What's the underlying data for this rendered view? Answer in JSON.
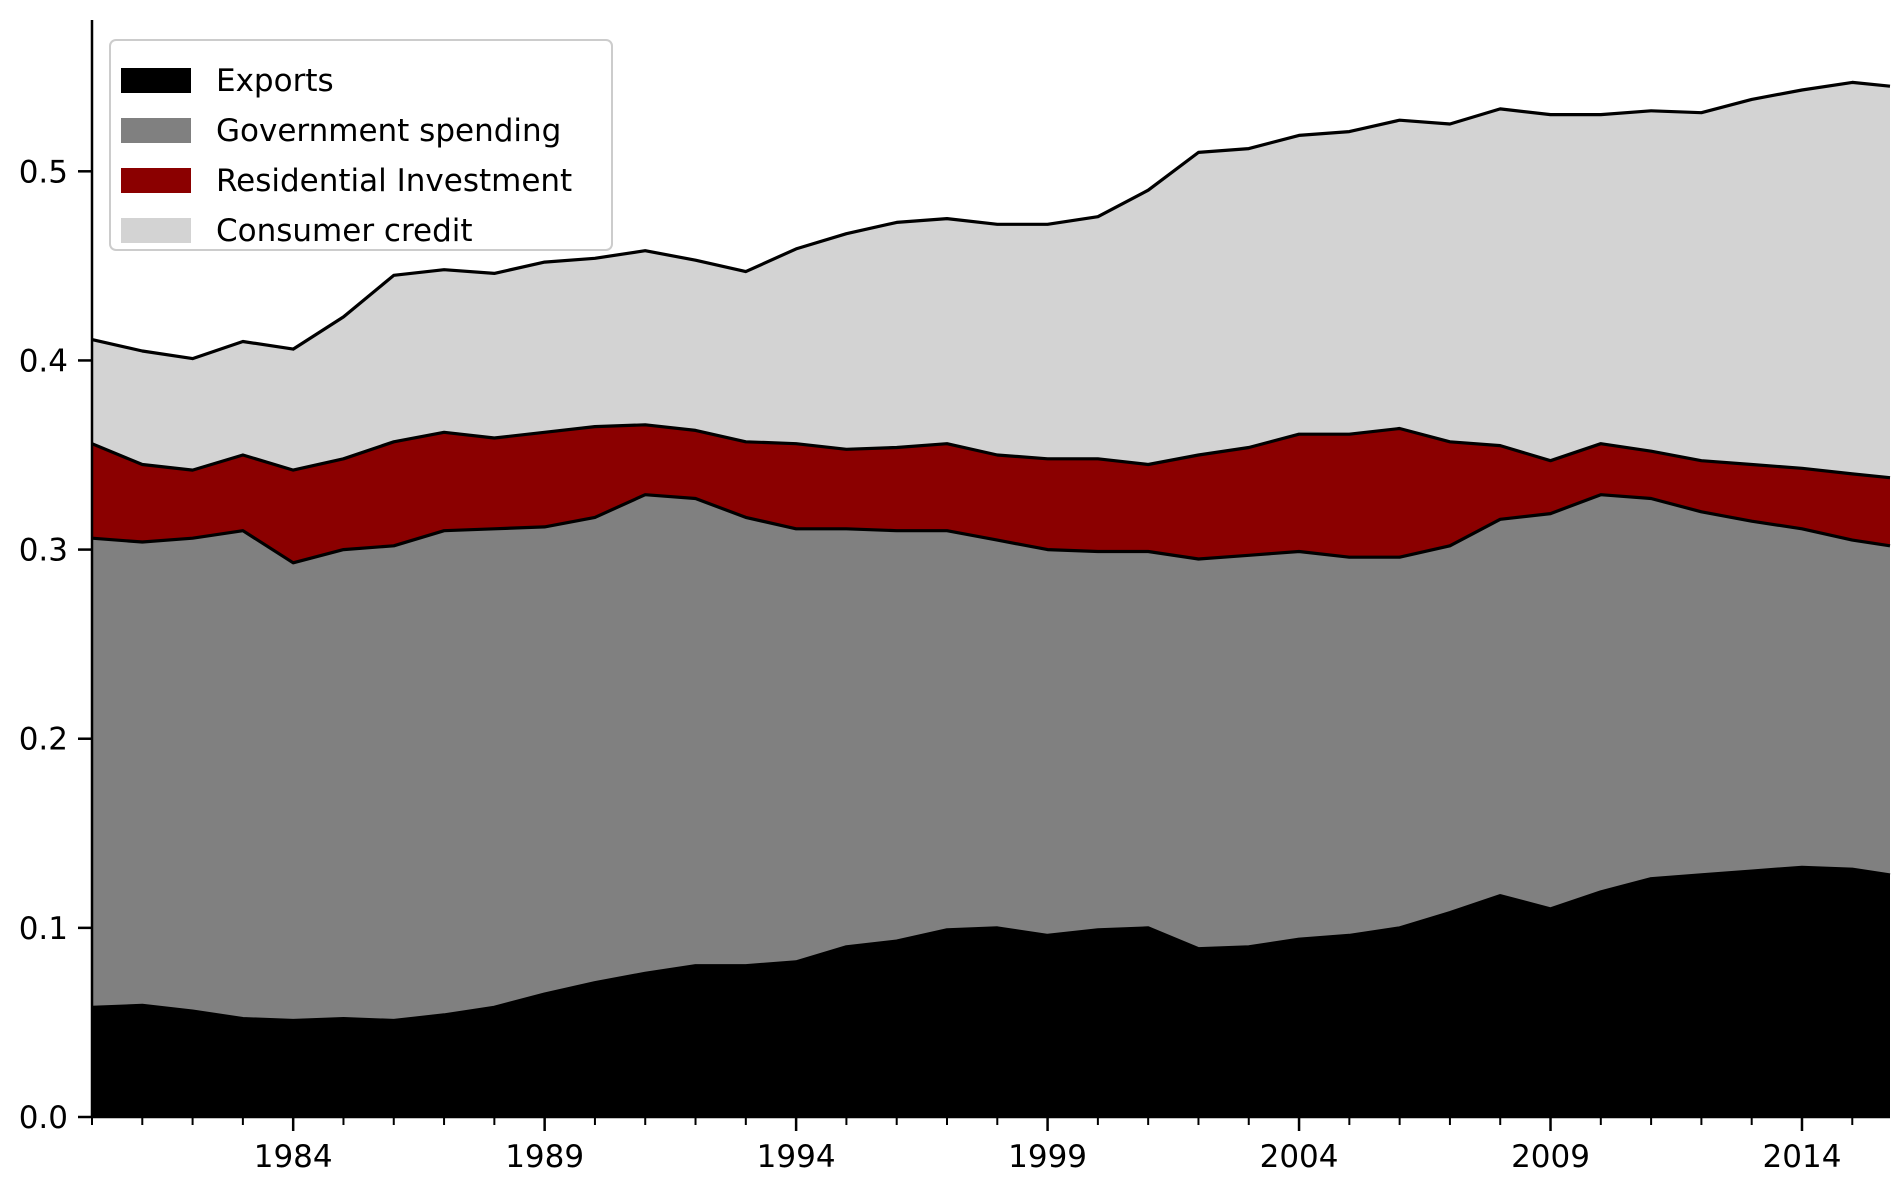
{
  "chart_data": {
    "type": "area",
    "stacked": true,
    "title": "",
    "xlabel": "",
    "ylabel": "",
    "xlim": [
      1980.0,
      2015.75
    ],
    "ylim": [
      0.0,
      0.58
    ],
    "xticks": [
      1984,
      1989,
      1994,
      1999,
      2004,
      2009,
      2014
    ],
    "yticks": [
      0.0,
      0.1,
      0.2,
      0.3,
      0.4,
      0.5
    ],
    "ytick_labels": [
      "0.0",
      "0.1",
      "0.2",
      "0.3",
      "0.4",
      "0.5"
    ],
    "minor_xticks_per_year": 1,
    "grid": false,
    "legend_position": "top-left",
    "x": [
      1980,
      1981,
      1982,
      1983,
      1984,
      1985,
      1986,
      1987,
      1988,
      1989,
      1990,
      1991,
      1992,
      1993,
      1994,
      1995,
      1996,
      1997,
      1998,
      1999,
      2000,
      2001,
      2002,
      2003,
      2004,
      2005,
      2006,
      2007,
      2008,
      2009,
      2010,
      2011,
      2012,
      2013,
      2014,
      2015,
      2015.75
    ],
    "series": [
      {
        "name": "Exports",
        "color": "#000000",
        "values": [
          0.058,
          0.059,
          0.056,
          0.052,
          0.051,
          0.052,
          0.051,
          0.054,
          0.058,
          0.065,
          0.071,
          0.076,
          0.08,
          0.08,
          0.082,
          0.09,
          0.093,
          0.099,
          0.1,
          0.096,
          0.099,
          0.1,
          0.089,
          0.09,
          0.094,
          0.096,
          0.1,
          0.108,
          0.117,
          0.11,
          0.119,
          0.126,
          0.128,
          0.13,
          0.132,
          0.131,
          0.128
        ]
      },
      {
        "name": "Government spending",
        "color": "#808080",
        "values": [
          0.248,
          0.245,
          0.25,
          0.258,
          0.242,
          0.248,
          0.251,
          0.256,
          0.253,
          0.247,
          0.246,
          0.253,
          0.247,
          0.237,
          0.229,
          0.221,
          0.217,
          0.211,
          0.205,
          0.204,
          0.2,
          0.199,
          0.206,
          0.207,
          0.205,
          0.2,
          0.196,
          0.194,
          0.199,
          0.209,
          0.21,
          0.201,
          0.192,
          0.185,
          0.179,
          0.174,
          0.174
        ]
      },
      {
        "name": "Residential Investment",
        "color": "#8b0000",
        "values": [
          0.05,
          0.041,
          0.036,
          0.04,
          0.049,
          0.048,
          0.055,
          0.052,
          0.048,
          0.05,
          0.048,
          0.037,
          0.036,
          0.04,
          0.045,
          0.042,
          0.044,
          0.046,
          0.045,
          0.048,
          0.049,
          0.046,
          0.055,
          0.057,
          0.062,
          0.065,
          0.068,
          0.055,
          0.039,
          0.028,
          0.027,
          0.025,
          0.027,
          0.03,
          0.032,
          0.035,
          0.036
        ]
      },
      {
        "name": "Consumer credit",
        "color": "#d3d3d3",
        "values": [
          0.055,
          0.06,
          0.059,
          0.06,
          0.064,
          0.075,
          0.088,
          0.086,
          0.087,
          0.09,
          0.089,
          0.092,
          0.09,
          0.09,
          0.103,
          0.114,
          0.119,
          0.119,
          0.122,
          0.124,
          0.128,
          0.145,
          0.16,
          0.158,
          0.158,
          0.16,
          0.163,
          0.168,
          0.178,
          0.183,
          0.174,
          0.18,
          0.184,
          0.193,
          0.2,
          0.207,
          0.207
        ]
      }
    ]
  }
}
